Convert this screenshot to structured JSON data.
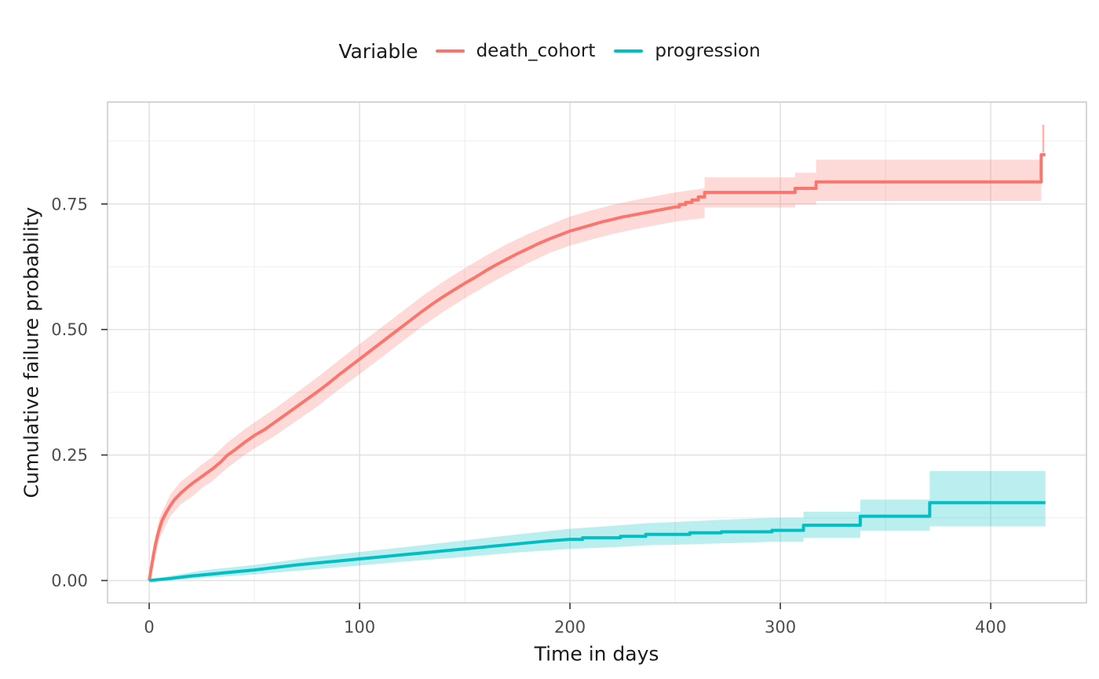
{
  "legend": {
    "title": "Variable",
    "items": [
      {
        "label": "death_cohort",
        "color": "#F8766D"
      },
      {
        "label": "progression",
        "color": "#00BFC4"
      }
    ]
  },
  "axes": {
    "x_title": "Time in days",
    "y_title": "Cumulative failure probability"
  },
  "chart_data": {
    "type": "line",
    "subtype": "step-cumulative-incidence-with-confidence-bands",
    "title": "",
    "xlabel": "Time in days",
    "ylabel": "Cumulative failure probability",
    "xlim": [
      -19.8,
      445.5
    ],
    "ylim": [
      -0.0445,
      0.953
    ],
    "x_ticks": [
      0,
      100,
      200,
      300,
      400
    ],
    "x_tick_labels": [
      "0",
      "100",
      "200",
      "300",
      "400"
    ],
    "x_minor_ticks": [
      50,
      150,
      250,
      350
    ],
    "y_ticks": [
      0,
      0.25,
      0.5,
      0.75
    ],
    "y_tick_labels": [
      "0.00",
      "0.25",
      "0.50",
      "0.75"
    ],
    "y_minor_ticks": [
      0.125,
      0.375,
      0.625,
      0.875
    ],
    "grid": true,
    "legend_position": "top",
    "legend_title": "Variable",
    "series": [
      {
        "name": "death_cohort",
        "color": "#F8766D",
        "band_opacity": 0.27,
        "points": [
          [
            0,
            0
          ],
          [
            1,
            0.025
          ],
          [
            2,
            0.05
          ],
          [
            3,
            0.072
          ],
          [
            4,
            0.09
          ],
          [
            5,
            0.105
          ],
          [
            6,
            0.118
          ],
          [
            8,
            0.135
          ],
          [
            10,
            0.149
          ],
          [
            12,
            0.161
          ],
          [
            15,
            0.174
          ],
          [
            18,
            0.185
          ],
          [
            21,
            0.195
          ],
          [
            25,
            0.207
          ],
          [
            30,
            0.222
          ],
          [
            34,
            0.236
          ],
          [
            37,
            0.249
          ],
          [
            41,
            0.261
          ],
          [
            45,
            0.274
          ],
          [
            50,
            0.289
          ],
          [
            55,
            0.301
          ],
          [
            60,
            0.316
          ],
          [
            65,
            0.331
          ],
          [
            70,
            0.346
          ],
          [
            75,
            0.361
          ],
          [
            80,
            0.376
          ],
          [
            85,
            0.392
          ],
          [
            90,
            0.409
          ],
          [
            95,
            0.425
          ],
          [
            100,
            0.441
          ],
          [
            105,
            0.457
          ],
          [
            110,
            0.473
          ],
          [
            115,
            0.489
          ],
          [
            120,
            0.505
          ],
          [
            125,
            0.521
          ],
          [
            130,
            0.537
          ],
          [
            135,
            0.552
          ],
          [
            140,
            0.566
          ],
          [
            145,
            0.579
          ],
          [
            150,
            0.592
          ],
          [
            155,
            0.604
          ],
          [
            160,
            0.617
          ],
          [
            165,
            0.629
          ],
          [
            170,
            0.64
          ],
          [
            175,
            0.651
          ],
          [
            180,
            0.661
          ],
          [
            185,
            0.671
          ],
          [
            190,
            0.68
          ],
          [
            195,
            0.688
          ],
          [
            200,
            0.696
          ],
          [
            205,
            0.702
          ],
          [
            210,
            0.708
          ],
          [
            215,
            0.714
          ],
          [
            220,
            0.719
          ],
          [
            225,
            0.724
          ],
          [
            230,
            0.728
          ],
          [
            235,
            0.732
          ],
          [
            240,
            0.736
          ],
          [
            245,
            0.74
          ],
          [
            250,
            0.744
          ],
          [
            252,
            0.744
          ],
          [
            252,
            0.749
          ],
          [
            255,
            0.749
          ],
          [
            255,
            0.753
          ],
          [
            258,
            0.753
          ],
          [
            258,
            0.758
          ],
          [
            261,
            0.758
          ],
          [
            261,
            0.764
          ],
          [
            264,
            0.764
          ],
          [
            264,
            0.773
          ],
          [
            307,
            0.773
          ],
          [
            307,
            0.781
          ],
          [
            317,
            0.781
          ],
          [
            317,
            0.794
          ],
          [
            424,
            0.794
          ],
          [
            424,
            0.848
          ],
          [
            426,
            0.848
          ]
        ],
        "band": [
          [
            0,
            0,
            0
          ],
          [
            2,
            0.03,
            0.07
          ],
          [
            5,
            0.085,
            0.126
          ],
          [
            10,
            0.128,
            0.171
          ],
          [
            15,
            0.152,
            0.197
          ],
          [
            20,
            0.166,
            0.213
          ],
          [
            25,
            0.184,
            0.231
          ],
          [
            30,
            0.198,
            0.246
          ],
          [
            37,
            0.224,
            0.274
          ],
          [
            45,
            0.249,
            0.3
          ],
          [
            50,
            0.263,
            0.315
          ],
          [
            60,
            0.289,
            0.343
          ],
          [
            70,
            0.318,
            0.374
          ],
          [
            80,
            0.347,
            0.405
          ],
          [
            90,
            0.38,
            0.438
          ],
          [
            100,
            0.411,
            0.471
          ],
          [
            110,
            0.443,
            0.503
          ],
          [
            120,
            0.475,
            0.535
          ],
          [
            130,
            0.507,
            0.567
          ],
          [
            140,
            0.536,
            0.596
          ],
          [
            150,
            0.562,
            0.622
          ],
          [
            160,
            0.587,
            0.647
          ],
          [
            170,
            0.61,
            0.67
          ],
          [
            180,
            0.632,
            0.69
          ],
          [
            190,
            0.652,
            0.708
          ],
          [
            200,
            0.667,
            0.725
          ],
          [
            210,
            0.679,
            0.737
          ],
          [
            220,
            0.69,
            0.748
          ],
          [
            230,
            0.699,
            0.757
          ],
          [
            240,
            0.707,
            0.765
          ],
          [
            250,
            0.715,
            0.773
          ],
          [
            264,
            0.722,
            0.781
          ],
          [
            264,
            0.743,
            0.803
          ],
          [
            307,
            0.743,
            0.803
          ],
          [
            307,
            0.749,
            0.812
          ],
          [
            317,
            0.749,
            0.812
          ],
          [
            317,
            0.756,
            0.838
          ],
          [
            424,
            0.756,
            0.838
          ]
        ],
        "end_whisker": {
          "x": 425,
          "y_from": 0.852,
          "y_to": 0.908
        }
      },
      {
        "name": "progression",
        "color": "#00BFC4",
        "band_opacity": 0.27,
        "points": [
          [
            0,
            0
          ],
          [
            10,
            0.004
          ],
          [
            20,
            0.009
          ],
          [
            30,
            0.013
          ],
          [
            40,
            0.017
          ],
          [
            50,
            0.021
          ],
          [
            60,
            0.026
          ],
          [
            70,
            0.031
          ],
          [
            80,
            0.035
          ],
          [
            90,
            0.039
          ],
          [
            100,
            0.043
          ],
          [
            110,
            0.047
          ],
          [
            120,
            0.051
          ],
          [
            130,
            0.055
          ],
          [
            140,
            0.059
          ],
          [
            150,
            0.063
          ],
          [
            160,
            0.067
          ],
          [
            170,
            0.071
          ],
          [
            180,
            0.075
          ],
          [
            190,
            0.079
          ],
          [
            200,
            0.082
          ],
          [
            206,
            0.082
          ],
          [
            206,
            0.085
          ],
          [
            224,
            0.085
          ],
          [
            224,
            0.088
          ],
          [
            236,
            0.088
          ],
          [
            236,
            0.092
          ],
          [
            257,
            0.092
          ],
          [
            257,
            0.095
          ],
          [
            272,
            0.095
          ],
          [
            272,
            0.097
          ],
          [
            296,
            0.097
          ],
          [
            296,
            0.1
          ],
          [
            311,
            0.1
          ],
          [
            311,
            0.11
          ],
          [
            338,
            0.11
          ],
          [
            338,
            0.128
          ],
          [
            371,
            0.128
          ],
          [
            371,
            0.155
          ],
          [
            426,
            0.155
          ]
        ],
        "band": [
          [
            0,
            0,
            0
          ],
          [
            10,
            0.001,
            0.009
          ],
          [
            25,
            0.005,
            0.02
          ],
          [
            50,
            0.012,
            0.031
          ],
          [
            75,
            0.021,
            0.045
          ],
          [
            100,
            0.03,
            0.057
          ],
          [
            125,
            0.039,
            0.068
          ],
          [
            150,
            0.047,
            0.08
          ],
          [
            175,
            0.056,
            0.092
          ],
          [
            200,
            0.063,
            0.103
          ],
          [
            224,
            0.067,
            0.11
          ],
          [
            236,
            0.07,
            0.114
          ],
          [
            257,
            0.072,
            0.118
          ],
          [
            272,
            0.074,
            0.121
          ],
          [
            296,
            0.077,
            0.125
          ],
          [
            311,
            0.077,
            0.125
          ],
          [
            311,
            0.085,
            0.137
          ],
          [
            338,
            0.085,
            0.137
          ],
          [
            338,
            0.099,
            0.161
          ],
          [
            371,
            0.099,
            0.161
          ],
          [
            371,
            0.108,
            0.218
          ],
          [
            426,
            0.108,
            0.218
          ]
        ]
      }
    ]
  },
  "style": {
    "grid_major_color": "#E3E3E3",
    "grid_minor_color": "#F0F0F0",
    "panel_border_color": "#C9C9C9",
    "tick_mark_color": "#333333",
    "tick_label_color": "#4D4D4D",
    "text_color": "#1A1A1A",
    "background": "#FFFFFF"
  }
}
